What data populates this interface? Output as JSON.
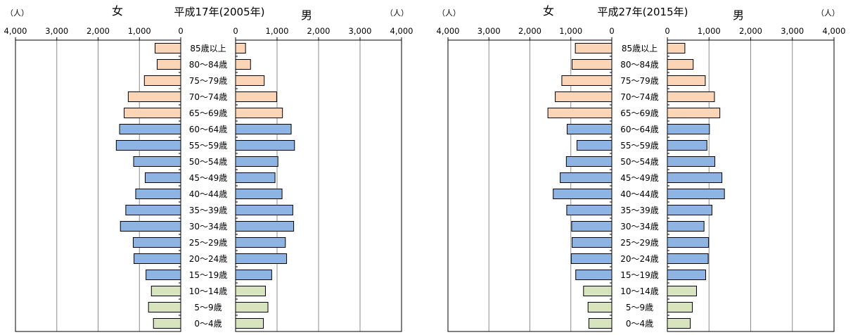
{
  "chart_data": [
    {
      "type": "bar",
      "orientation": "horizontal",
      "layout": "population-pyramid",
      "title": "平成17年(2005年)",
      "female_label": "女",
      "male_label": "男",
      "unit_label": "（人）",
      "xlim": [
        0,
        4000
      ],
      "xticks": [
        "4,000",
        "3,000",
        "2,000",
        "1,000",
        "0"
      ],
      "categories": [
        "85歳以上",
        "80～84歳",
        "75～79歳",
        "70～74歳",
        "65～69歳",
        "60～64歳",
        "55～59歳",
        "50～54歳",
        "45～49歳",
        "40～44歳",
        "35～39歳",
        "30～34歳",
        "25～29歳",
        "20～24歳",
        "15～19歳",
        "10～14歳",
        "5～9歳",
        "0～4歳"
      ],
      "series": [
        {
          "name": "女",
          "values": [
            620,
            570,
            880,
            1270,
            1370,
            1480,
            1560,
            1140,
            860,
            1090,
            1330,
            1460,
            1150,
            1130,
            840,
            710,
            780,
            660
          ]
        },
        {
          "name": "男",
          "values": [
            240,
            360,
            690,
            990,
            1130,
            1340,
            1420,
            1020,
            950,
            1120,
            1380,
            1400,
            1200,
            1230,
            870,
            720,
            780,
            670
          ]
        }
      ]
    },
    {
      "type": "bar",
      "orientation": "horizontal",
      "layout": "population-pyramid",
      "title": "平成27年(2015年)",
      "female_label": "女",
      "male_label": "男",
      "unit_label": "（人）",
      "xlim": [
        0,
        4000
      ],
      "xticks": [
        "4,000",
        "3,000",
        "2,000",
        "1,000",
        "0"
      ],
      "categories": [
        "85歳以上",
        "80～84歳",
        "75～79歳",
        "70～74歳",
        "65～69歳",
        "60～64歳",
        "55～59歳",
        "50～54歳",
        "45～49歳",
        "40～44歳",
        "35～39歳",
        "30～34歳",
        "25～29歳",
        "20～24歳",
        "15～19歳",
        "10～14歳",
        "5～9歳",
        "0～4歳"
      ],
      "series": [
        {
          "name": "女",
          "values": [
            890,
            970,
            1220,
            1380,
            1560,
            1090,
            850,
            1110,
            1260,
            1430,
            1100,
            980,
            970,
            990,
            880,
            690,
            580,
            560
          ]
        },
        {
          "name": "男",
          "values": [
            420,
            620,
            910,
            1130,
            1260,
            1010,
            950,
            1140,
            1310,
            1370,
            1070,
            880,
            990,
            980,
            920,
            700,
            600,
            550
          ]
        }
      ]
    }
  ],
  "colors": {
    "elderly": "#fbd5b5",
    "working": "#8eb4e3",
    "young": "#d7e4bd",
    "grid": "#8c8c8c"
  },
  "age_groups": {
    "elderly_count": 5,
    "working_count": 10,
    "young_count": 3
  }
}
